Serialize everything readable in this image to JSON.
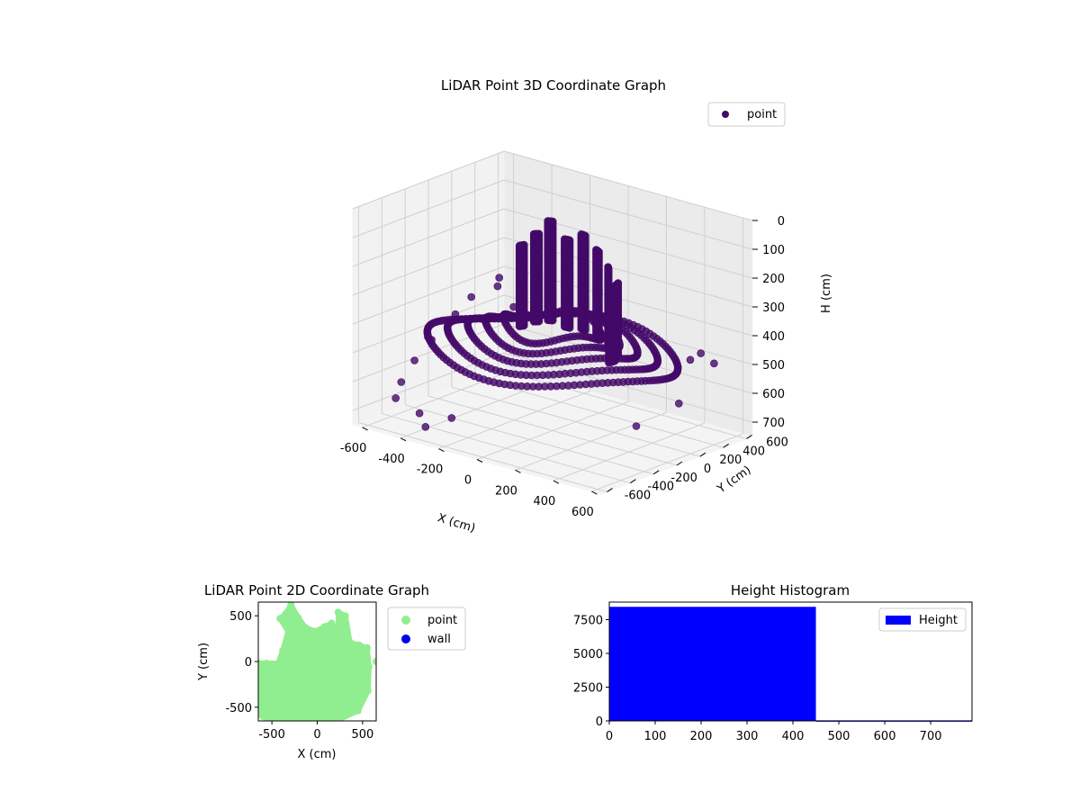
{
  "chart_data": [
    {
      "type": "scatter",
      "projection": "3d",
      "title": "LiDAR Point 3D Coordinate Graph",
      "xlabel": "X (cm)",
      "ylabel": "Y (cm)",
      "zlabel": "H (cm)",
      "xlim": [
        -650,
        650
      ],
      "ylim": [
        -650,
        650
      ],
      "zlim": [
        0,
        750
      ],
      "z_inverted": true,
      "x_ticks": [
        -600,
        -400,
        -200,
        0,
        200,
        400,
        600
      ],
      "y_ticks": [
        -600,
        -400,
        -200,
        0,
        200,
        400,
        600
      ],
      "z_ticks": [
        0,
        100,
        200,
        300,
        400,
        500,
        600,
        700
      ],
      "grid": true,
      "legend": {
        "position": "top-right",
        "entries": [
          "point"
        ]
      },
      "series": [
        {
          "name": "point",
          "color": "#440a68",
          "points": [
            [
              -600,
              150,
              480
            ],
            [
              -560,
              -120,
              520
            ],
            [
              -620,
              320,
              450
            ],
            [
              -540,
              -300,
              560
            ],
            [
              -580,
              480,
              430
            ],
            [
              -500,
              -480,
              600
            ],
            [
              -460,
              420,
              470
            ],
            [
              -640,
              -20,
              540
            ],
            [
              -520,
              260,
              500
            ],
            [
              -480,
              -560,
              640
            ],
            [
              -380,
              -520,
              680
            ],
            [
              -300,
              -600,
              700
            ],
            [
              -620,
              560,
              420
            ],
            [
              480,
              600,
              520
            ],
            [
              560,
              -200,
              600
            ],
            [
              520,
              420,
              450
            ],
            [
              380,
              560,
              520
            ],
            [
              -200,
              -540,
              660
            ],
            [
              600,
              100,
              560
            ]
          ],
          "rings": [
            {
              "r": 560,
              "h": 470
            },
            {
              "r": 470,
              "h": 450
            },
            {
              "r": 380,
              "h": 430
            },
            {
              "r": 300,
              "h": 410
            },
            {
              "r": 220,
              "h": 390
            }
          ],
          "walls": [
            {
              "angle": 100,
              "r": 180,
              "h_top": 120,
              "h_bottom": 430
            },
            {
              "angle": 125,
              "r": 160,
              "h_top": 60,
              "h_bottom": 410
            },
            {
              "angle": 145,
              "r": 180,
              "h_top": 110,
              "h_bottom": 420
            },
            {
              "angle": 165,
              "r": 200,
              "h_top": 150,
              "h_bottom": 430
            },
            {
              "angle": 75,
              "r": 190,
              "h_top": 90,
              "h_bottom": 420
            },
            {
              "angle": 55,
              "r": 220,
              "h_top": 130,
              "h_bottom": 430
            },
            {
              "angle": 35,
              "r": 250,
              "h_top": 170,
              "h_bottom": 440
            },
            {
              "angle": 15,
              "r": 300,
              "h_top": 200,
              "h_bottom": 450
            },
            {
              "angle": -5,
              "r": 330,
              "h_top": 230,
              "h_bottom": 450
            }
          ]
        }
      ]
    },
    {
      "type": "scatter",
      "title": "LiDAR Point 2D Coordinate Graph",
      "xlabel": "X (cm)",
      "ylabel": "Y (cm)",
      "xlim": [
        -650,
        650
      ],
      "ylim": [
        -650,
        650
      ],
      "x_ticks": [
        -500,
        0,
        500
      ],
      "y_ticks": [
        -500,
        0,
        500
      ],
      "legend": {
        "position": "outside-right",
        "entries": [
          "point",
          "wall"
        ]
      },
      "series": [
        {
          "name": "point",
          "color": "#90ee90",
          "outline": [
            [
              -650,
              -20
            ],
            [
              -560,
              -20
            ],
            [
              -430,
              -20
            ],
            [
              -380,
              120
            ],
            [
              -320,
              330
            ],
            [
              -410,
              470
            ],
            [
              -350,
              520
            ],
            [
              -290,
              620
            ],
            [
              -210,
              480
            ],
            [
              -130,
              370
            ],
            [
              -20,
              330
            ],
            [
              80,
              380
            ],
            [
              160,
              420
            ],
            [
              240,
              300
            ],
            [
              230,
              540
            ],
            [
              310,
              500
            ],
            [
              360,
              210
            ],
            [
              460,
              180
            ],
            [
              550,
              150
            ],
            [
              570,
              -60
            ],
            [
              560,
              -320
            ],
            [
              450,
              -540
            ],
            [
              250,
              -630
            ],
            [
              0,
              -650
            ],
            [
              -300,
              -650
            ],
            [
              -560,
              -620
            ],
            [
              -650,
              -570
            ]
          ],
          "outliers": [
            [
              650,
              0
            ],
            [
              -650,
              -20
            ],
            [
              -600,
              -600
            ]
          ]
        },
        {
          "name": "wall",
          "color": "#0000ee",
          "points": []
        }
      ]
    },
    {
      "type": "bar",
      "title": "Height Histogram",
      "xlim": [
        0,
        790
      ],
      "ylim": [
        0,
        8800
      ],
      "x_ticks": [
        0,
        100,
        200,
        300,
        400,
        500,
        600,
        700
      ],
      "y_ticks": [
        0,
        2500,
        5000,
        7500
      ],
      "legend": {
        "position": "top-right",
        "entries": [
          "Height"
        ]
      },
      "series": [
        {
          "name": "Height",
          "color": "#0000ff",
          "bins": [
            [
              0,
              450,
              8450
            ],
            [
              450,
              790,
              40
            ]
          ]
        }
      ]
    }
  ]
}
